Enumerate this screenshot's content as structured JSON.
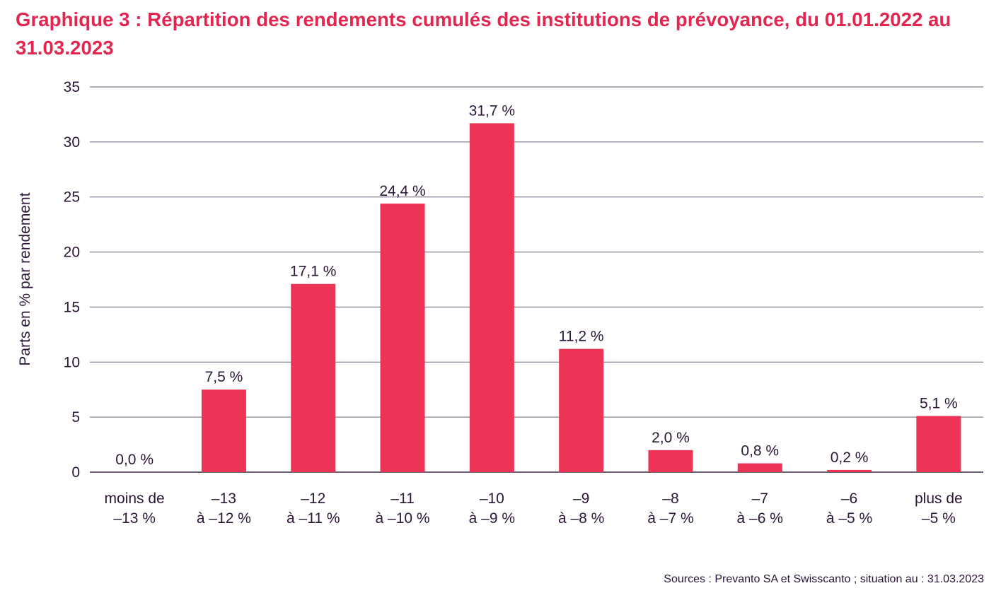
{
  "chart_data": {
    "type": "bar",
    "title": "Graphique 3 : Répartition des rendements cumulés des institutions de prévoyance, du 01.01.2022 au 31.03.2023",
    "ylabel": "Parts en % par rendement",
    "xlabel": "",
    "ylim": [
      0,
      35
    ],
    "yticks": [
      0,
      5,
      10,
      15,
      20,
      25,
      30,
      35
    ],
    "grid": true,
    "bar_color": "#ed3457",
    "categories": [
      [
        "moins de",
        "–13 %"
      ],
      [
        "–13",
        "à –12 %"
      ],
      [
        "–12",
        "à –11 %"
      ],
      [
        "–11",
        "à –10 %"
      ],
      [
        "–10",
        "à –9 %"
      ],
      [
        "–9",
        "à –8 %"
      ],
      [
        "–8",
        "à –7 %"
      ],
      [
        "–7",
        "à –6 %"
      ],
      [
        "–6",
        "à –5 %"
      ],
      [
        "plus de",
        "–5 %"
      ]
    ],
    "values": [
      0.0,
      7.5,
      17.1,
      24.4,
      31.7,
      11.2,
      2.0,
      0.8,
      0.2,
      5.1
    ],
    "value_labels": [
      "0,0 %",
      "7,5 %",
      "17,1 %",
      "24,4 %",
      "31,7 %",
      "11,2 %",
      "2,0 %",
      "0,8 %",
      "0,2 %",
      "5,1 %"
    ]
  },
  "source": "Sources : Prevanto SA et Swisscanto ; situation au : 31.03.2023"
}
